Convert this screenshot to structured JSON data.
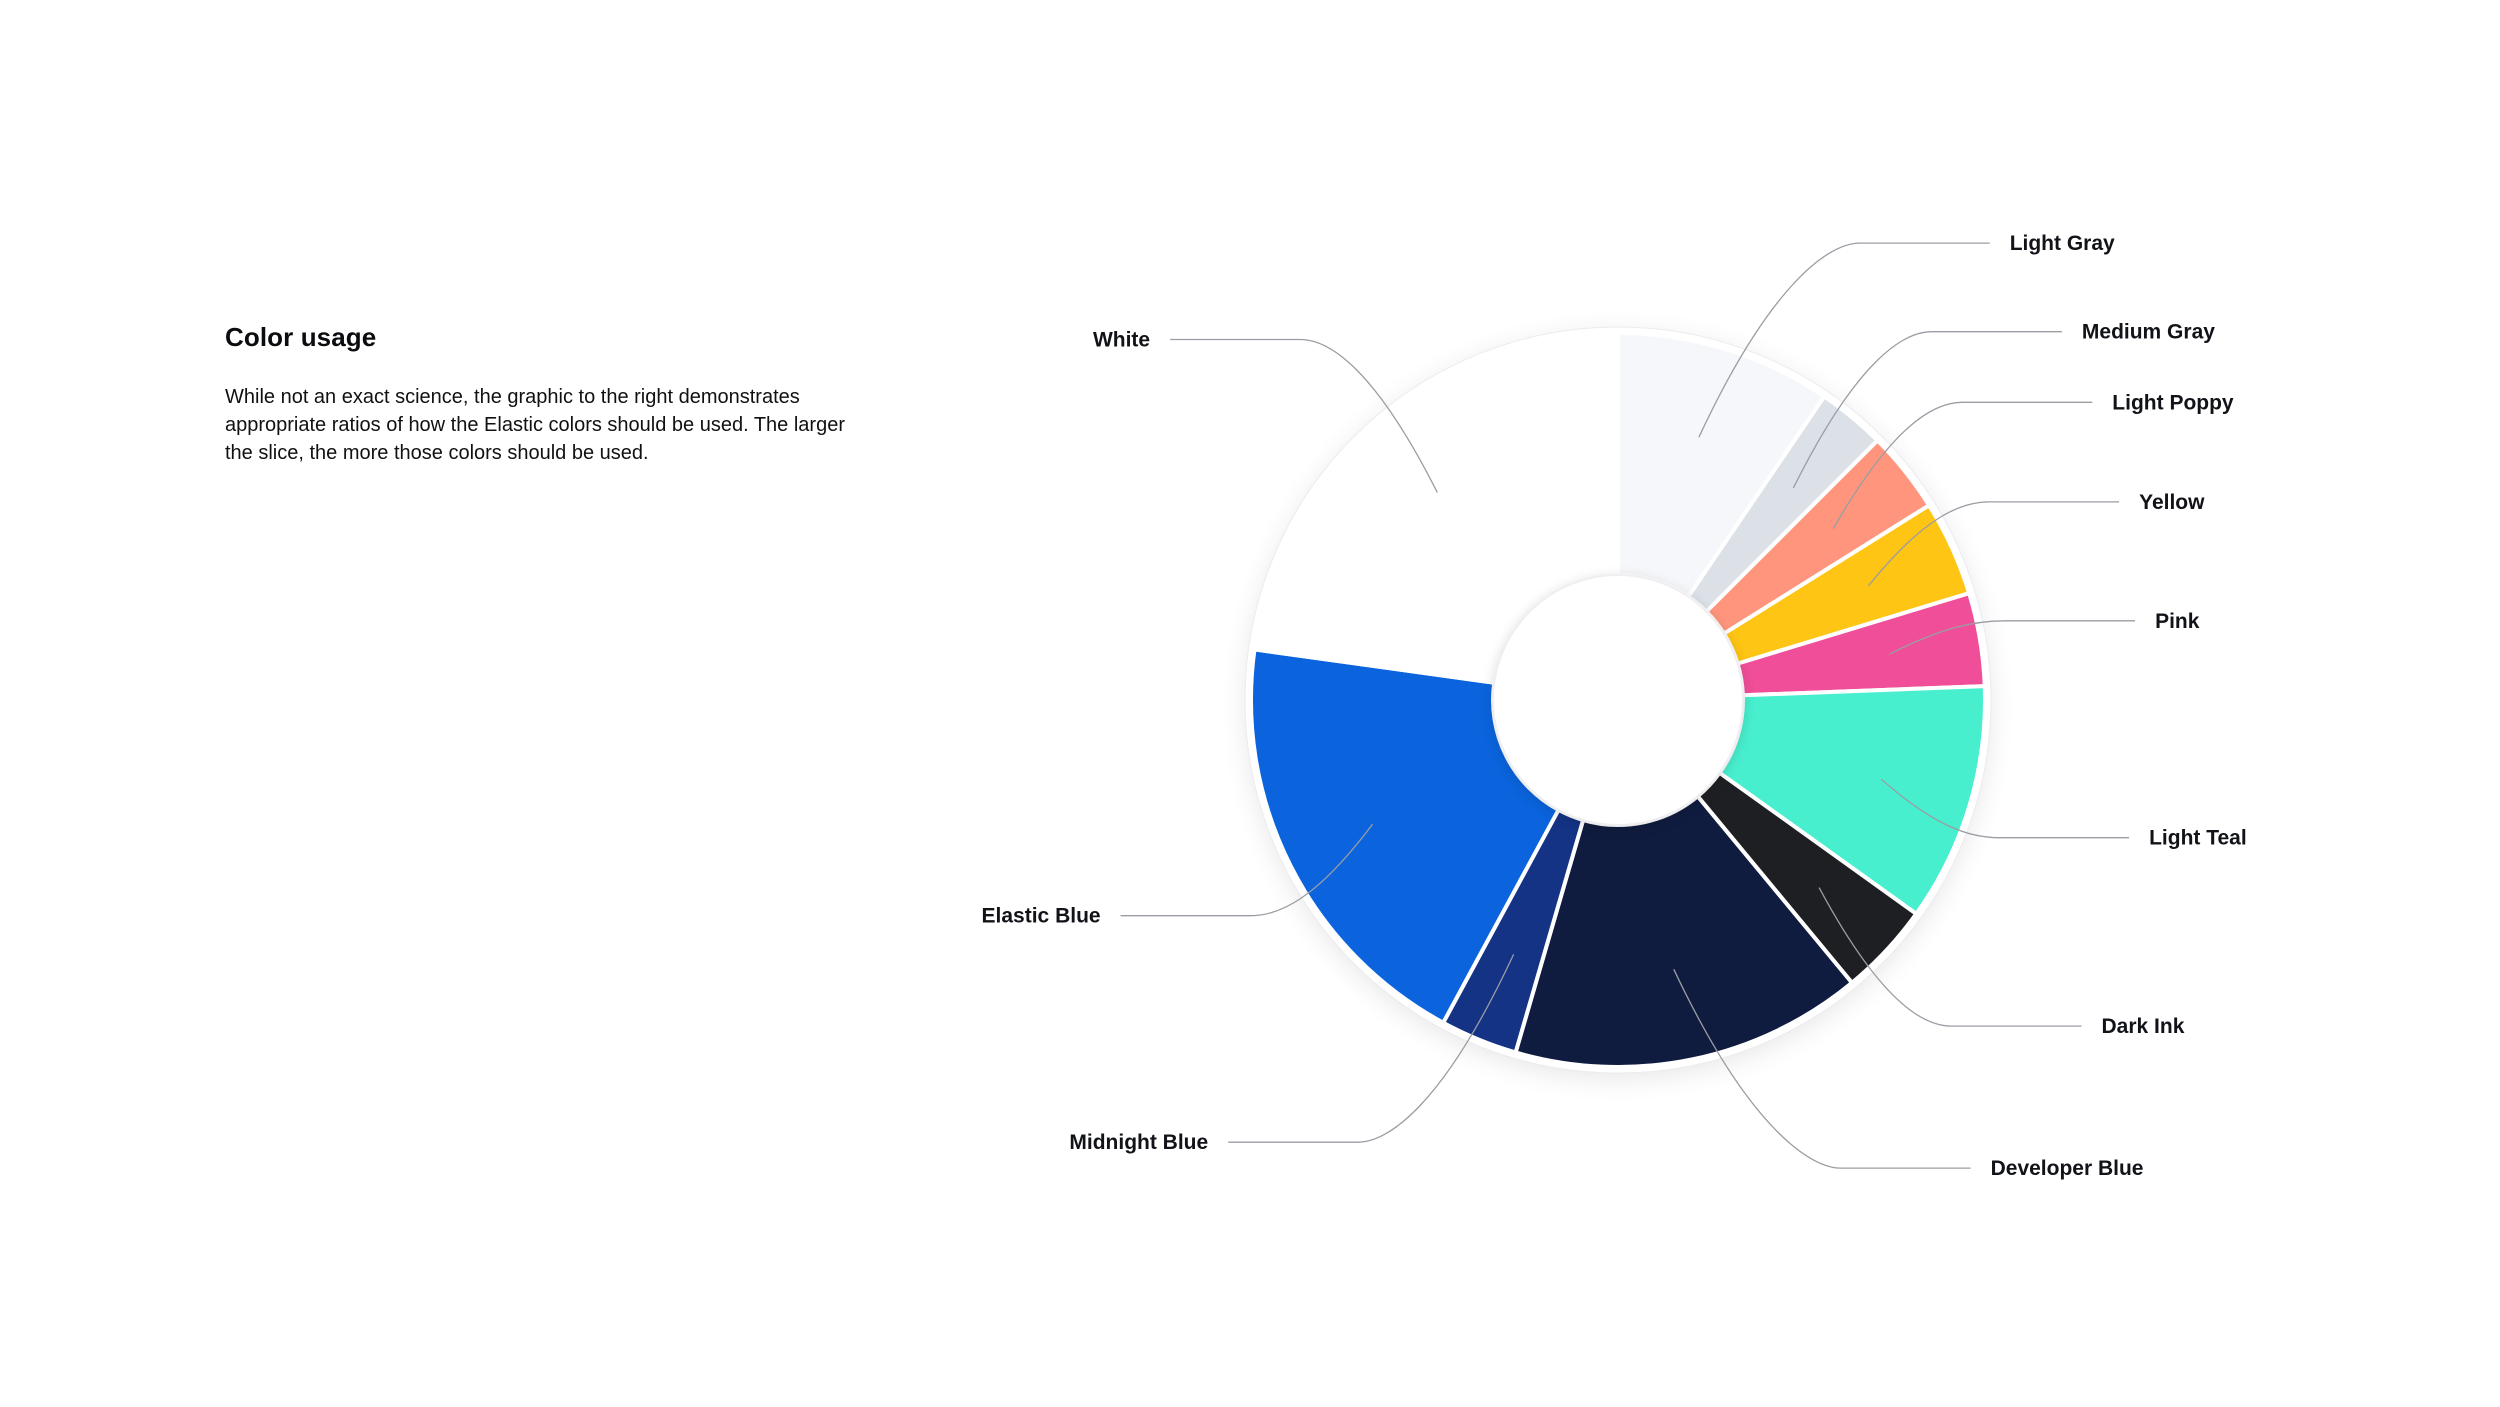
{
  "intro": {
    "title": "Color usage",
    "body": "While not an exact science, the graphic to the right demonstrates appropriate ratios of how the Elastic colors should be used. The larger the slice, the more those colors should be used."
  },
  "chart_data": {
    "type": "pie",
    "title": "",
    "slices": [
      {
        "label": "Light Gray",
        "value": 9.5,
        "color": "#F5F7FA"
      },
      {
        "label": "Medium Gray",
        "value": 3.0,
        "color": "#DCE1E8"
      },
      {
        "label": "Light Poppy",
        "value": 3.6,
        "color": "#FF957D"
      },
      {
        "label": "Yellow",
        "value": 4.2,
        "color": "#FEC514"
      },
      {
        "label": "Pink",
        "value": 4.1,
        "color": "#F04E98"
      },
      {
        "label": "Light Teal",
        "value": 10.5,
        "color": "#48EFCF"
      },
      {
        "label": "Dark Ink",
        "value": 4.1,
        "color": "#1E1F22"
      },
      {
        "label": "Developer Blue",
        "value": 15.5,
        "color": "#101C3F"
      },
      {
        "label": "Midnight Blue",
        "value": 3.4,
        "color": "#153385"
      },
      {
        "label": "Elastic Blue",
        "value": 19.3,
        "color": "#0B64DD"
      },
      {
        "label": "White",
        "value": 22.8,
        "color": "#FFFFFF"
      }
    ]
  }
}
